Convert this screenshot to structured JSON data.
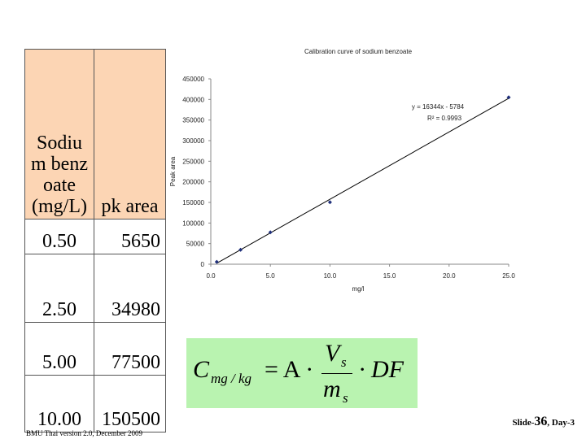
{
  "table": {
    "header": [
      "Sodium benzoate (mg/L)",
      "pk area"
    ],
    "rows": [
      [
        "0.50",
        "5650"
      ],
      [
        "2.50",
        "34980"
      ],
      [
        "5.00",
        "77500"
      ],
      [
        "10.00",
        "150500"
      ]
    ]
  },
  "chart_data": {
    "type": "scatter",
    "title": "Calibration curve of sodium benzoate",
    "x_label": "mg/l",
    "y_label": "Peak area",
    "x": [
      0.5,
      2.5,
      5,
      10,
      25
    ],
    "series": [
      {
        "color": "#1f2f7a",
        "values": [
          5650,
          34980,
          77500,
          150500,
          405000
        ]
      }
    ],
    "trendline": {
      "equation": "y = 16344x - 5784",
      "r2": "R² = 0.9993",
      "slope": 16344,
      "intercept": -5784,
      "color": "#000000"
    },
    "xlim": [
      0,
      25
    ],
    "ylim": [
      0,
      450000
    ],
    "xticks": [
      {
        "value": 0,
        "label": "0.0"
      },
      {
        "value": 5,
        "label": "5.0"
      },
      {
        "value": 10,
        "label": "10.0"
      },
      {
        "value": 15,
        "label": "15.0"
      },
      {
        "value": 20,
        "label": "20.0"
      },
      {
        "value": 25,
        "label": "25.0"
      }
    ],
    "yticks": [
      0,
      50000,
      100000,
      150000,
      200000,
      250000,
      300000,
      350000,
      400000,
      450000
    ],
    "grid": false
  },
  "formula": {
    "c": "C",
    "c_sub": "mg / kg",
    "mid": "= A ·",
    "num": "V",
    "num_sub": "s",
    "den": "m",
    "den_sub": "s",
    "tail": "· DF"
  },
  "footer": {
    "left": "BMU Thai version 2.0, December 2009",
    "slide": "Slide-",
    "number": "36",
    "day": ", Day-3"
  }
}
